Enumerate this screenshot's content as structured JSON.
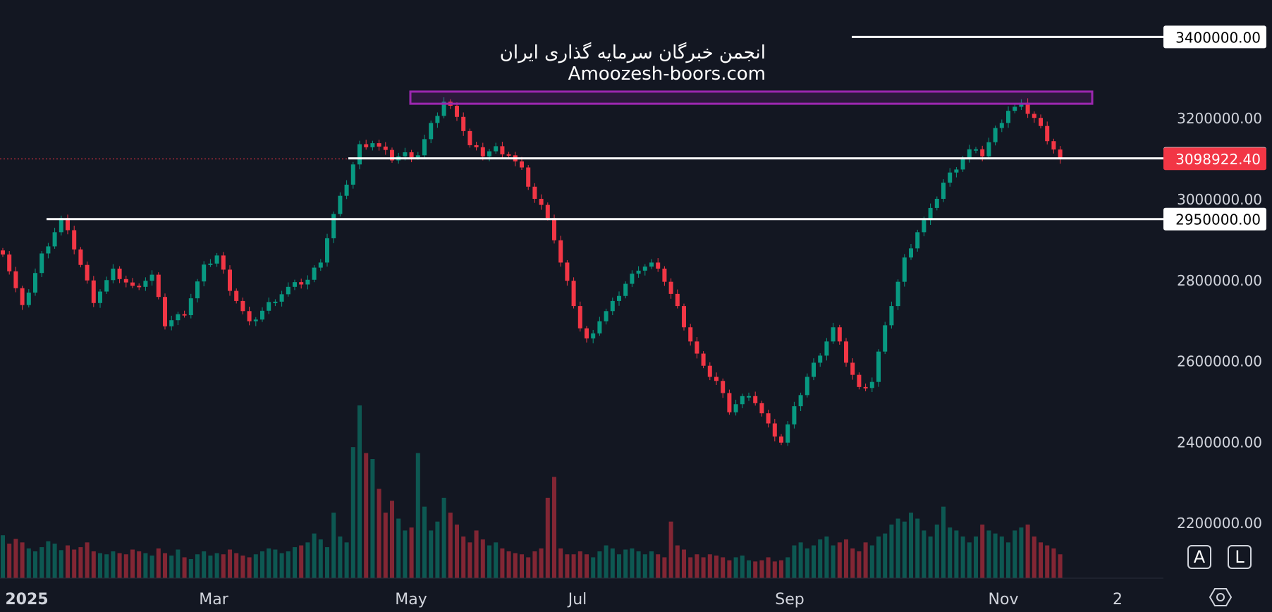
{
  "watermark": {
    "line1": "انجمن خبرگان سرمایه گذاری ایران",
    "line2": "Amoozesh-boors.com"
  },
  "buttons": {
    "auto": "A",
    "log": "L"
  },
  "colors": {
    "background": "#131722",
    "up": "#089981",
    "down": "#f23645",
    "text": "#d1d4dc",
    "box": "#9c27b0",
    "level": "#ffffff"
  },
  "chart_data": {
    "type": "candlestick",
    "x_tick_labels": [
      "2025",
      "Mar",
      "May",
      "Jul",
      "Sep",
      "Nov",
      "2"
    ],
    "y_tick_values": [
      2200000,
      2400000,
      2600000,
      2800000,
      3000000,
      3200000
    ],
    "y_tick_labels": [
      "2200000.00",
      "2400000.00",
      "2600000.00",
      "2800000.00",
      "3000000.00",
      "3200000.00"
    ],
    "ylim": [
      2080000,
      3460000
    ],
    "grid": false,
    "horizontal_levels": [
      {
        "value": 3400000,
        "label": "3400000.00"
      },
      {
        "value": 3100000,
        "label": "3100000.00"
      },
      {
        "value": 2950000,
        "label": "2950000.00"
      }
    ],
    "last_price": {
      "value": 3098922.4,
      "label": "3098922.40"
    },
    "resistance_zone": {
      "low": 3235000,
      "high": 3265000
    },
    "close_anchors": [
      [
        0,
        2870000
      ],
      [
        3,
        2730000
      ],
      [
        6,
        2860000
      ],
      [
        9,
        2950000
      ],
      [
        11,
        2880000
      ],
      [
        14,
        2750000
      ],
      [
        17,
        2820000
      ],
      [
        20,
        2780000
      ],
      [
        23,
        2810000
      ],
      [
        25,
        2690000
      ],
      [
        28,
        2720000
      ],
      [
        31,
        2830000
      ],
      [
        33,
        2860000
      ],
      [
        35,
        2780000
      ],
      [
        38,
        2690000
      ],
      [
        41,
        2740000
      ],
      [
        44,
        2780000
      ],
      [
        47,
        2800000
      ],
      [
        49,
        2850000
      ],
      [
        51,
        2960000
      ],
      [
        53,
        3040000
      ],
      [
        55,
        3130000
      ],
      [
        57,
        3140000
      ],
      [
        60,
        3100000
      ],
      [
        62,
        3110000
      ],
      [
        64,
        3110000
      ],
      [
        66,
        3180000
      ],
      [
        68,
        3240000
      ],
      [
        70,
        3210000
      ],
      [
        72,
        3130000
      ],
      [
        74,
        3110000
      ],
      [
        76,
        3125000
      ],
      [
        78,
        3110000
      ],
      [
        80,
        3070000
      ],
      [
        82,
        3000000
      ],
      [
        84,
        2960000
      ],
      [
        86,
        2840000
      ],
      [
        88,
        2740000
      ],
      [
        89,
        2680000
      ],
      [
        90,
        2650000
      ],
      [
        92,
        2700000
      ],
      [
        94,
        2740000
      ],
      [
        96,
        2790000
      ],
      [
        98,
        2830000
      ],
      [
        100,
        2840000
      ],
      [
        102,
        2800000
      ],
      [
        104,
        2730000
      ],
      [
        106,
        2650000
      ],
      [
        108,
        2580000
      ],
      [
        110,
        2550000
      ],
      [
        112,
        2480000
      ],
      [
        114,
        2510000
      ],
      [
        116,
        2500000
      ],
      [
        118,
        2440000
      ],
      [
        120,
        2400000
      ],
      [
        122,
        2480000
      ],
      [
        124,
        2560000
      ],
      [
        126,
        2620000
      ],
      [
        128,
        2680000
      ],
      [
        130,
        2600000
      ],
      [
        132,
        2530000
      ],
      [
        134,
        2550000
      ],
      [
        135,
        2620000
      ],
      [
        137,
        2740000
      ],
      [
        139,
        2850000
      ],
      [
        141,
        2920000
      ],
      [
        143,
        2970000
      ],
      [
        145,
        3040000
      ],
      [
        147,
        3080000
      ],
      [
        149,
        3120000
      ],
      [
        151,
        3110000
      ],
      [
        153,
        3170000
      ],
      [
        155,
        3220000
      ],
      [
        157,
        3230000
      ],
      [
        159,
        3200000
      ],
      [
        161,
        3150000
      ],
      [
        163,
        3098922
      ]
    ],
    "volume": [
      72,
      58,
      66,
      60,
      50,
      45,
      52,
      62,
      58,
      47,
      55,
      48,
      52,
      60,
      45,
      42,
      40,
      45,
      42,
      40,
      48,
      45,
      42,
      38,
      50,
      42,
      38,
      48,
      35,
      32,
      40,
      45,
      38,
      42,
      40,
      48,
      42,
      38,
      35,
      40,
      45,
      50,
      48,
      42,
      45,
      52,
      55,
      60,
      75,
      65,
      52,
      110,
      70,
      60,
      220,
      290,
      210,
      200,
      150,
      110,
      130,
      100,
      80,
      85,
      210,
      120,
      80,
      95,
      135,
      110,
      90,
      70,
      60,
      80,
      65,
      55,
      60,
      50,
      45,
      42,
      40,
      35,
      45,
      50,
      135,
      170,
      50,
      40,
      40,
      45,
      40,
      35,
      45,
      55,
      50,
      40,
      48,
      50,
      45,
      40,
      45,
      40,
      35,
      95,
      55,
      48,
      35,
      40,
      35,
      40,
      38,
      35,
      30,
      35,
      38,
      30,
      28,
      30,
      35,
      28,
      30,
      35,
      55,
      60,
      50,
      55,
      65,
      70,
      55,
      60,
      65,
      50,
      45,
      60,
      55,
      70,
      75,
      90,
      100,
      95,
      110,
      100,
      80,
      70,
      90,
      120,
      85,
      80,
      70,
      60,
      70,
      90,
      80,
      75,
      70,
      60,
      80,
      85,
      90,
      70,
      60,
      55,
      50,
      40
    ]
  }
}
